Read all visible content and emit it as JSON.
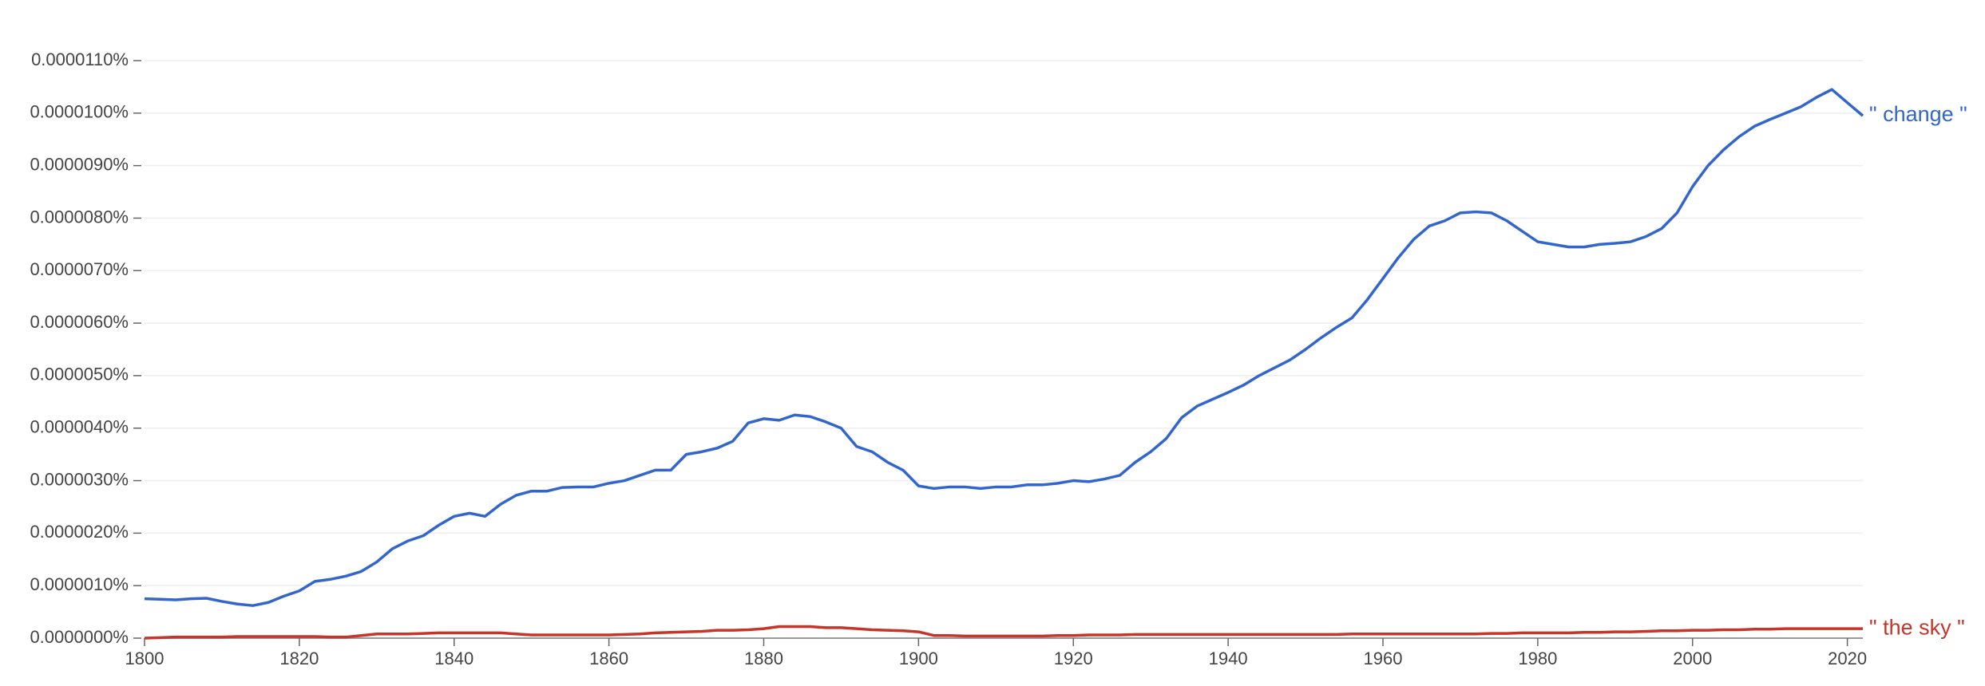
{
  "chart_data": {
    "type": "line",
    "x": [
      1800,
      1802,
      1804,
      1806,
      1808,
      1810,
      1812,
      1814,
      1816,
      1818,
      1820,
      1822,
      1824,
      1826,
      1828,
      1830,
      1832,
      1834,
      1836,
      1838,
      1840,
      1842,
      1844,
      1846,
      1848,
      1850,
      1852,
      1854,
      1856,
      1858,
      1860,
      1862,
      1864,
      1866,
      1868,
      1870,
      1872,
      1874,
      1876,
      1878,
      1880,
      1882,
      1884,
      1886,
      1888,
      1890,
      1892,
      1894,
      1896,
      1898,
      1900,
      1902,
      1904,
      1906,
      1908,
      1910,
      1912,
      1914,
      1916,
      1918,
      1920,
      1922,
      1924,
      1926,
      1928,
      1930,
      1932,
      1934,
      1936,
      1938,
      1940,
      1942,
      1944,
      1946,
      1948,
      1950,
      1952,
      1954,
      1956,
      1958,
      1960,
      1962,
      1964,
      1966,
      1968,
      1970,
      1972,
      1974,
      1976,
      1978,
      1980,
      1982,
      1984,
      1986,
      1988,
      1990,
      1992,
      1994,
      1996,
      1998,
      2000,
      2002,
      2004,
      2006,
      2008,
      2010,
      2012,
      2014,
      2016,
      2018,
      2020,
      2022
    ],
    "series": [
      {
        "name": "\" change \"",
        "color": "#3366cc",
        "values": [
          7.5e-07,
          7.4e-07,
          7.3e-07,
          7.5e-07,
          7.6e-07,
          7e-07,
          6.5e-07,
          6.2e-07,
          6.8e-07,
          8e-07,
          9e-07,
          1.08e-06,
          1.12e-06,
          1.18e-06,
          1.27e-06,
          1.45e-06,
          1.7e-06,
          1.85e-06,
          1.95e-06,
          2.15e-06,
          2.32e-06,
          2.38e-06,
          2.32e-06,
          2.55e-06,
          2.72e-06,
          2.8e-06,
          2.8e-06,
          2.87e-06,
          2.88e-06,
          2.88e-06,
          2.95e-06,
          3e-06,
          3.1e-06,
          3.2e-06,
          3.2e-06,
          3.5e-06,
          3.55e-06,
          3.62e-06,
          3.75e-06,
          4.1e-06,
          4.18e-06,
          4.15e-06,
          4.25e-06,
          4.22e-06,
          4.12e-06,
          4e-06,
          3.65e-06,
          3.55e-06,
          3.35e-06,
          3.2e-06,
          2.9e-06,
          2.85e-06,
          2.88e-06,
          2.88e-06,
          2.85e-06,
          2.88e-06,
          2.88e-06,
          2.92e-06,
          2.92e-06,
          2.95e-06,
          3e-06,
          2.98e-06,
          3.03e-06,
          3.1e-06,
          3.35e-06,
          3.55e-06,
          3.8e-06,
          4.2e-06,
          4.42e-06,
          4.55e-06,
          4.68e-06,
          4.82e-06,
          5e-06,
          5.15e-06,
          5.3e-06,
          5.5e-06,
          5.72e-06,
          5.92e-06,
          6.1e-06,
          6.45e-06,
          6.85e-06,
          7.25e-06,
          7.6e-06,
          7.85e-06,
          7.95e-06,
          8.1e-06,
          8.12e-06,
          8.1e-06,
          7.95e-06,
          7.75e-06,
          7.55e-06,
          7.5e-06,
          7.45e-06,
          7.45e-06,
          7.5e-06,
          7.52e-06,
          7.55e-06,
          7.65e-06,
          7.8e-06,
          8.1e-06,
          8.6e-06,
          9e-06,
          9.3e-06,
          9.55e-06,
          9.75e-06,
          9.88e-06,
          1e-05,
          1.012e-05,
          1.03e-05,
          1.045e-05,
          1.02e-05,
          9.95e-06
        ]
      },
      {
        "name": "\" the sky \"",
        "color": "#c5352a",
        "values": [
          0,
          1e-08,
          2e-08,
          2e-08,
          2e-08,
          2e-08,
          3e-08,
          3e-08,
          3e-08,
          3e-08,
          3e-08,
          3e-08,
          2e-08,
          2e-08,
          5e-08,
          8e-08,
          8e-08,
          8e-08,
          9e-08,
          1e-07,
          1e-07,
          1e-07,
          1e-07,
          1e-07,
          8e-08,
          6e-08,
          6e-08,
          6e-08,
          6e-08,
          6e-08,
          6e-08,
          7e-08,
          8e-08,
          1e-07,
          1.1e-07,
          1.2e-07,
          1.3e-07,
          1.5e-07,
          1.5e-07,
          1.6e-07,
          1.8e-07,
          2.2e-07,
          2.2e-07,
          2.2e-07,
          2e-07,
          2e-07,
          1.8e-07,
          1.6e-07,
          1.5e-07,
          1.4e-07,
          1.2e-07,
          5e-08,
          5e-08,
          4e-08,
          4e-08,
          4e-08,
          4e-08,
          4e-08,
          4e-08,
          5e-08,
          5e-08,
          6e-08,
          6e-08,
          6e-08,
          7e-08,
          7e-08,
          7e-08,
          7e-08,
          7e-08,
          7e-08,
          7e-08,
          7e-08,
          7e-08,
          7e-08,
          7e-08,
          7e-08,
          7e-08,
          7e-08,
          8e-08,
          8e-08,
          8e-08,
          8e-08,
          8e-08,
          8e-08,
          8e-08,
          8e-08,
          8e-08,
          9e-08,
          9e-08,
          1e-07,
          1e-07,
          1e-07,
          1e-07,
          1.1e-07,
          1.1e-07,
          1.2e-07,
          1.2e-07,
          1.3e-07,
          1.4e-07,
          1.4e-07,
          1.5e-07,
          1.5e-07,
          1.6e-07,
          1.6e-07,
          1.7e-07,
          1.7e-07,
          1.8e-07,
          1.8e-07,
          1.8e-07,
          1.8e-07,
          1.8e-07,
          1.8e-07
        ]
      }
    ],
    "xlim": [
      1800,
      2022
    ],
    "xticks": [
      1800,
      1820,
      1840,
      1860,
      1880,
      1900,
      1920,
      1940,
      1960,
      1980,
      2000,
      2020
    ],
    "ylim": [
      0,
      1.1e-05
    ],
    "yticks": [
      {
        "value": 0,
        "label": "0.0000000%"
      },
      {
        "value": 1e-06,
        "label": "0.0000010%"
      },
      {
        "value": 2e-06,
        "label": "0.0000020%"
      },
      {
        "value": 3e-06,
        "label": "0.0000030%"
      },
      {
        "value": 4e-06,
        "label": "0.0000040%"
      },
      {
        "value": 5e-06,
        "label": "0.0000050%"
      },
      {
        "value": 6e-06,
        "label": "0.0000060%"
      },
      {
        "value": 7e-06,
        "label": "0.0000070%"
      },
      {
        "value": 8e-06,
        "label": "0.0000080%"
      },
      {
        "value": 9e-06,
        "label": "0.0000090%"
      },
      {
        "value": 1e-05,
        "label": "0.0000100%"
      },
      {
        "value": 1.1e-05,
        "label": "0.0000110%"
      }
    ],
    "grid": true
  }
}
